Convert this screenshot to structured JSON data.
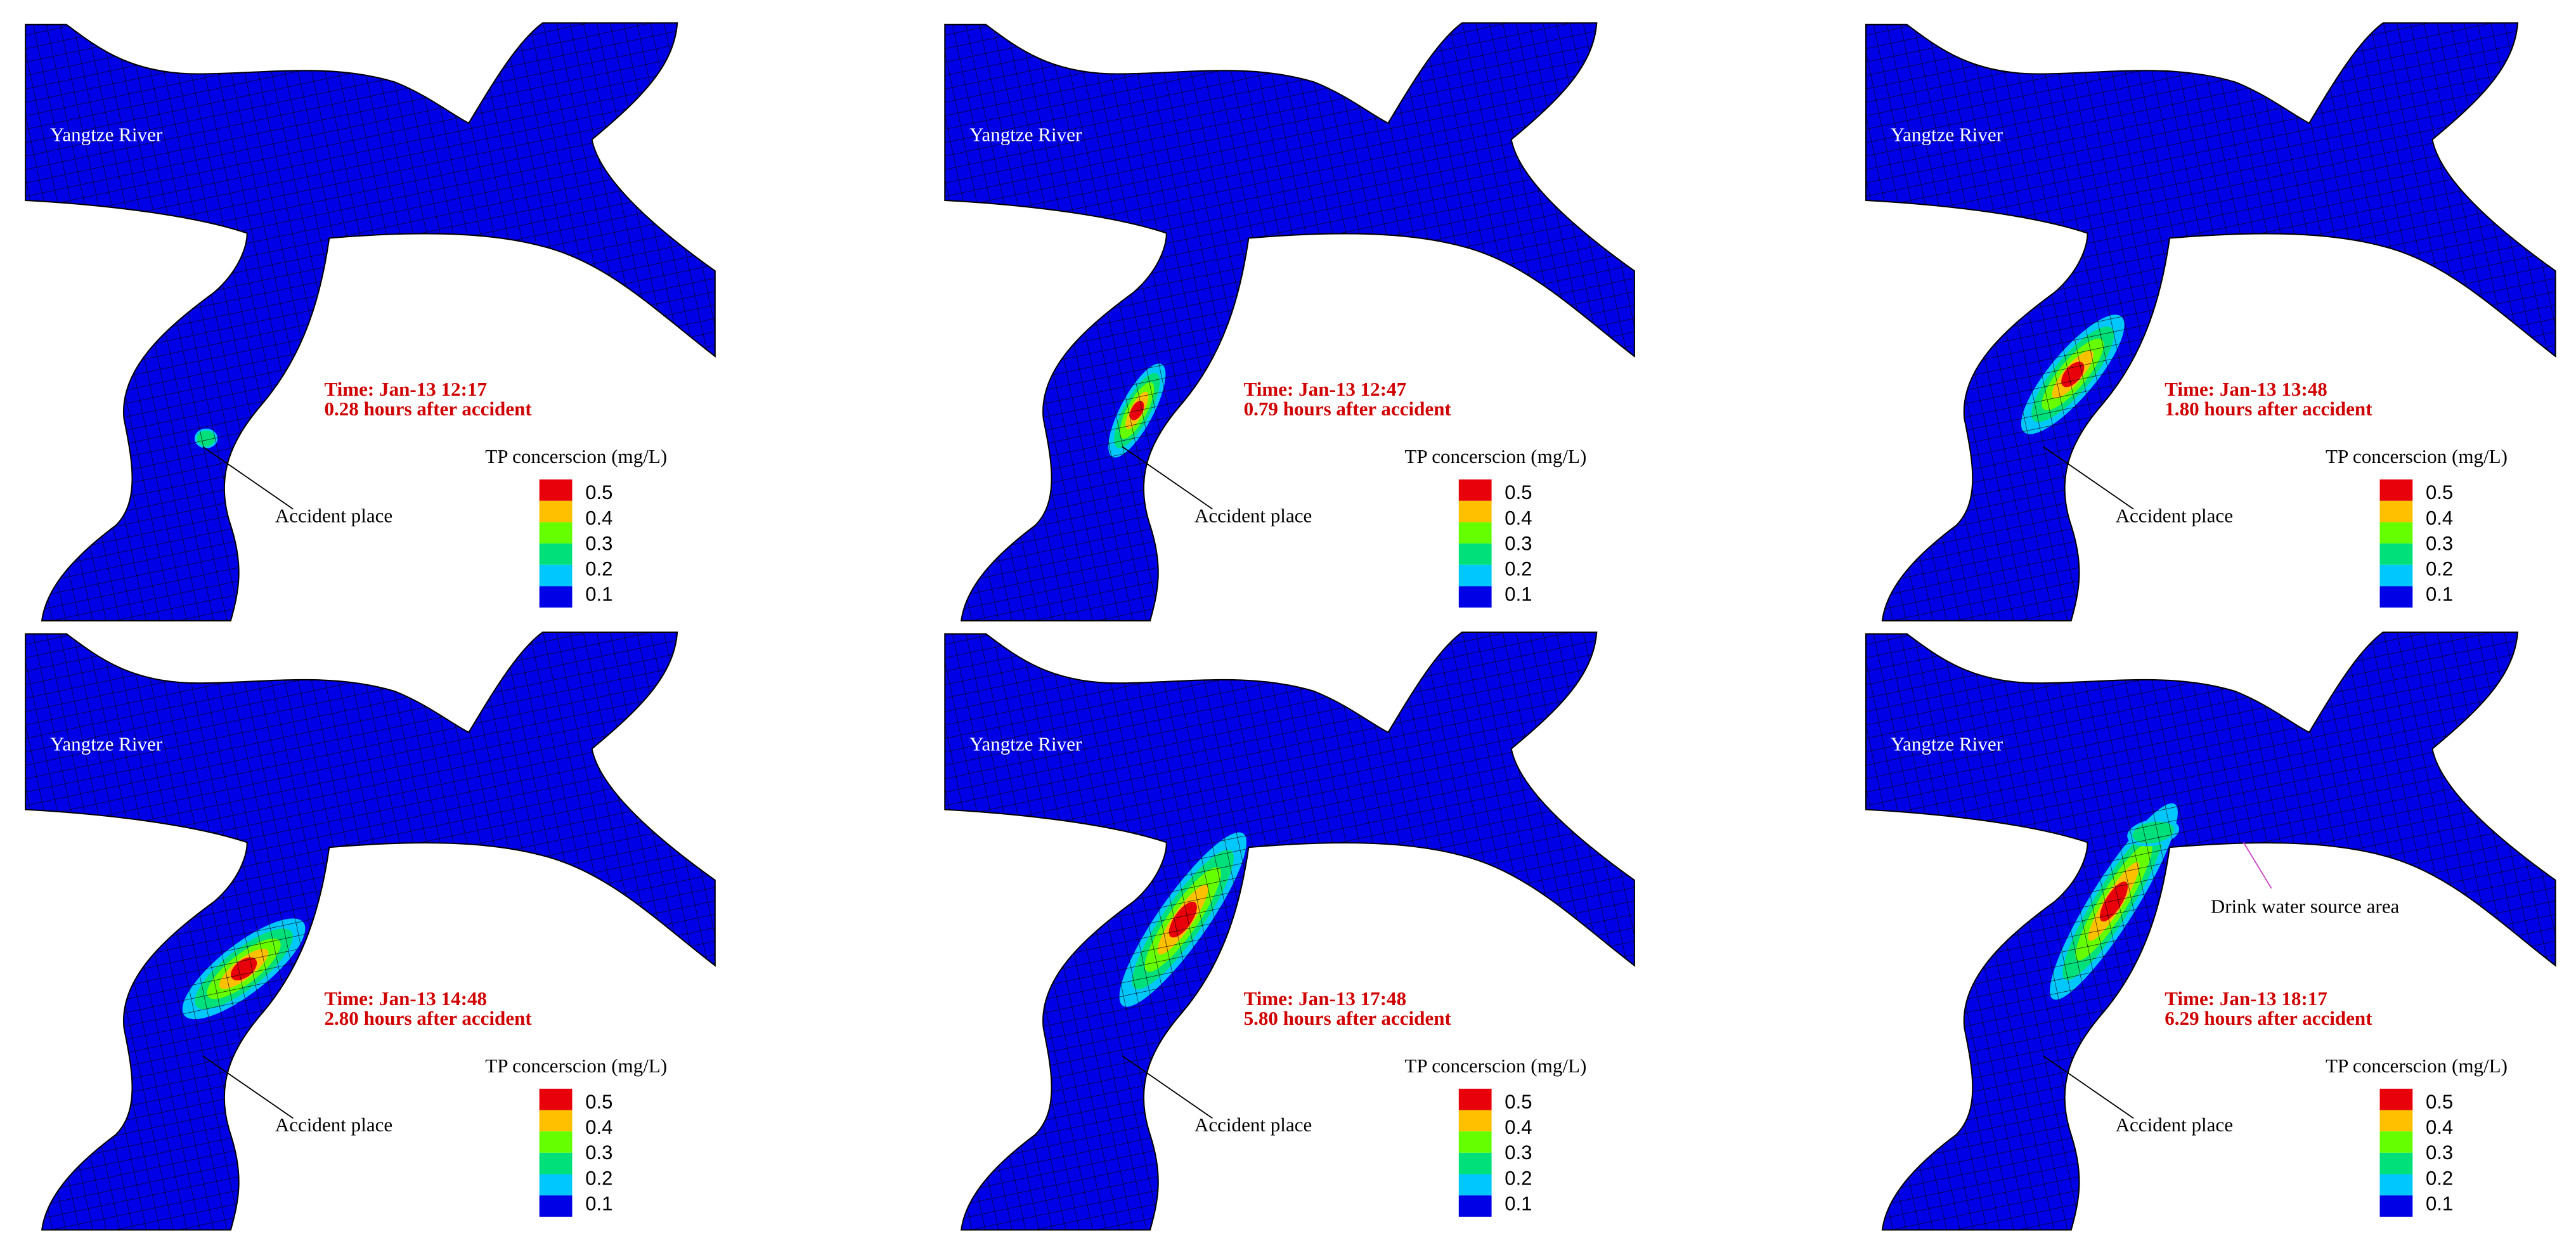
{
  "legend_colors": [
    "#e8000b",
    "#ffc000",
    "#66ff00",
    "#00e07a",
    "#00c8ff",
    "#0000e6"
  ],
  "panels": [
    {
      "river_label": "Yangtze River",
      "time": "Time: Jan-13 12:17",
      "elapsed": "0.28 hours after accident",
      "legend_title": "TP concerscion (mg/L)",
      "legend_labels": [
        "0.5",
        "0.4",
        "0.3",
        "0.2",
        "0.1"
      ],
      "accident_label": "Accident place"
    },
    {
      "river_label": "Yangtze River",
      "time": "Time: Jan-13 12:47",
      "elapsed": "0.79 hours after accident",
      "legend_title": "TP concerscion (mg/L)",
      "legend_labels": [
        "0.5",
        "0.4",
        "0.3",
        "0.2",
        "0.1"
      ],
      "accident_label": "Accident place"
    },
    {
      "river_label": "Yangtze River",
      "time": "Time: Jan-13 13:48",
      "elapsed": "1.80 hours after accident",
      "legend_title": "TP concerscion (mg/L)",
      "legend_labels": [
        "0.5",
        "0.4",
        "0.3",
        "0.2",
        "0.1"
      ],
      "accident_label": "Accident place"
    },
    {
      "river_label": "Yangtze River",
      "time": "Time: Jan-13 14:48",
      "elapsed": "2.80 hours after accident",
      "legend_title": "TP concerscion (mg/L)",
      "legend_labels": [
        "0.5",
        "0.4",
        "0.3",
        "0.2",
        "0.1"
      ],
      "accident_label": "Accident place"
    },
    {
      "river_label": "Yangtze River",
      "time": "Time: Jan-13 17:48",
      "elapsed": "5.80 hours after accident",
      "legend_title": "TP concerscion (mg/L)",
      "legend_labels": [
        "0.5",
        "0.4",
        "0.3",
        "0.2",
        "0.1"
      ],
      "accident_label": "Accident place"
    },
    {
      "river_label": "Yangtze River",
      "time": "Time: Jan-13 18:17",
      "elapsed": "6.29 hours after accident",
      "legend_title": "TP concerscion (mg/L)",
      "legend_labels": [
        "0.5",
        "0.4",
        "0.3",
        "0.2",
        "0.1"
      ],
      "accident_label": "Accident place",
      "drink_water_label": "Drink water source area"
    }
  ]
}
